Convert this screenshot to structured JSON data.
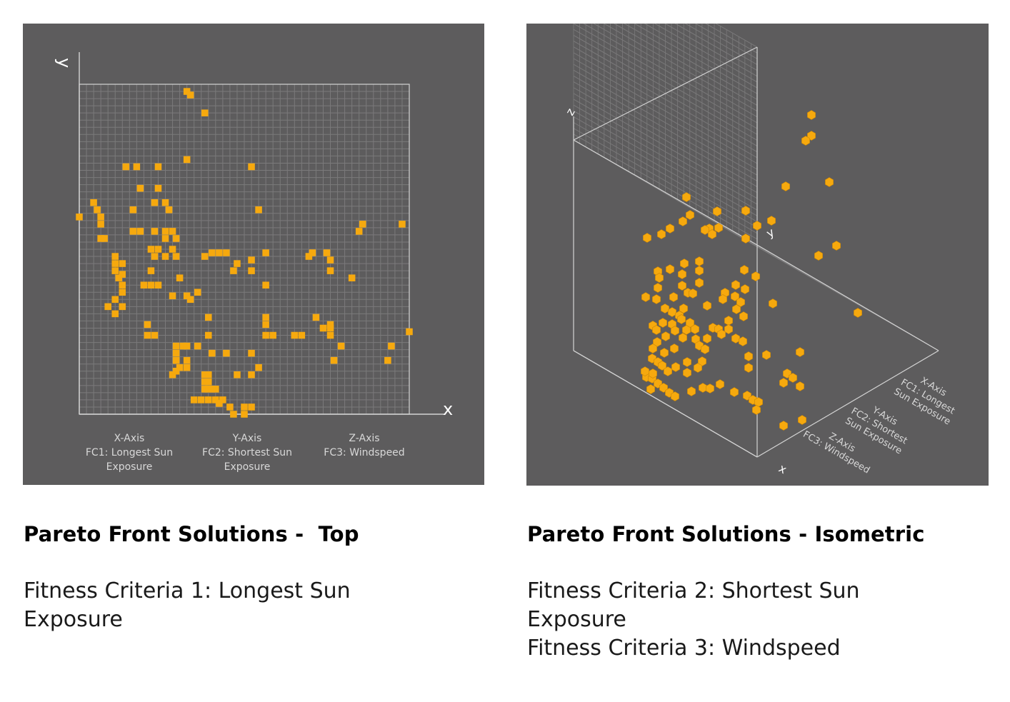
{
  "top_panel": {
    "axis_letters": {
      "x": "x",
      "y": "y"
    },
    "legend": [
      {
        "title": "X-Axis",
        "lines": [
          "FC1: Longest Sun",
          "Exposure"
        ]
      },
      {
        "title": "Y-Axis",
        "lines": [
          "FC2: Shortest Sun",
          "Exposure"
        ]
      },
      {
        "title": "Z-Axis",
        "lines": [
          "FC3: Windspeed"
        ]
      }
    ]
  },
  "iso_panel": {
    "axis_letters": {
      "x": "x",
      "y": "y",
      "z": "z"
    },
    "legend": [
      {
        "title": "X-Axis",
        "lines": [
          "FC1: Longest",
          "Sun Exposure"
        ]
      },
      {
        "title": "Y-Axis",
        "lines": [
          "FC2: Shortest",
          "Sun Exposure"
        ]
      },
      {
        "title": "Z-Axis",
        "lines": [
          "FC3: Windspeed"
        ]
      }
    ]
  },
  "captions": {
    "top": {
      "heading": "Pareto Front Solutions -  Top",
      "lines": [
        "Fitness Criteria 1: Longest Sun",
        "Exposure"
      ]
    },
    "iso": {
      "heading": "Pareto Front Solutions - Isometric",
      "lines": [
        "Fitness Criteria 2: Shortest Sun",
        "Exposure",
        "Fitness Criteria 3: Windspeed"
      ]
    }
  },
  "colors": {
    "panel_bg": "#5d5c5d",
    "grid_minor": "#7b7a7b",
    "grid_major": "#d4d4d4",
    "point": "#f6a90e",
    "point_dark": "#c98608",
    "point_light": "#ffc43a"
  },
  "chart_data": [
    {
      "type": "scatter",
      "title": "Pareto Front Solutions -  Top",
      "view": "top",
      "grid": true,
      "xlim": [
        0,
        46
      ],
      "ylim": [
        0,
        46
      ],
      "points": [
        [
          15,
          45
        ],
        [
          15.5,
          44.5
        ],
        [
          17.5,
          42
        ],
        [
          15,
          35.5
        ],
        [
          6.5,
          34.5
        ],
        [
          8,
          34.5
        ],
        [
          11,
          34.5
        ],
        [
          24,
          34.5
        ],
        [
          8.5,
          31.5
        ],
        [
          11,
          31.5
        ],
        [
          10.5,
          29.5
        ],
        [
          12,
          29.5
        ],
        [
          2,
          29.5
        ],
        [
          2.5,
          28.5
        ],
        [
          7.5,
          28.5
        ],
        [
          12.5,
          28.5
        ],
        [
          25,
          28.5
        ],
        [
          0,
          27.5
        ],
        [
          3,
          27.5
        ],
        [
          3,
          26.5
        ],
        [
          45,
          26.5
        ],
        [
          39.5,
          26.5
        ],
        [
          39,
          25.5
        ],
        [
          7.5,
          25.5
        ],
        [
          8.5,
          25.5
        ],
        [
          10.5,
          25.5
        ],
        [
          12,
          25.5
        ],
        [
          13,
          25.5
        ],
        [
          3,
          24.5
        ],
        [
          3.5,
          24.5
        ],
        [
          12,
          24.5
        ],
        [
          13.5,
          24.5
        ],
        [
          10,
          23
        ],
        [
          11,
          23
        ],
        [
          13,
          23
        ],
        [
          17.5,
          22
        ],
        [
          18.5,
          22.5
        ],
        [
          19.5,
          22.5
        ],
        [
          20.5,
          22.5
        ],
        [
          26,
          22.5
        ],
        [
          32.5,
          22.5
        ],
        [
          34.5,
          22.5
        ],
        [
          13.5,
          22
        ],
        [
          5,
          22
        ],
        [
          10.5,
          22
        ],
        [
          12,
          22
        ],
        [
          32,
          22
        ],
        [
          22,
          21
        ],
        [
          24,
          21.5
        ],
        [
          35,
          21.5
        ],
        [
          5,
          21
        ],
        [
          6,
          21
        ],
        [
          5,
          20
        ],
        [
          24,
          20
        ],
        [
          21.5,
          20
        ],
        [
          35,
          20
        ],
        [
          6,
          19.5
        ],
        [
          10,
          20
        ],
        [
          5.5,
          19
        ],
        [
          14,
          19
        ],
        [
          38,
          19
        ],
        [
          6,
          18
        ],
        [
          9,
          18
        ],
        [
          10,
          18
        ],
        [
          11,
          18
        ],
        [
          26,
          18
        ],
        [
          6,
          17
        ],
        [
          16.5,
          17
        ],
        [
          13,
          16.5
        ],
        [
          15,
          16.5
        ],
        [
          5,
          16
        ],
        [
          15.5,
          16
        ],
        [
          4,
          15
        ],
        [
          6,
          15
        ],
        [
          5,
          14
        ],
        [
          18,
          13.5
        ],
        [
          26,
          13.5
        ],
        [
          33,
          13.5
        ],
        [
          9.5,
          12.5
        ],
        [
          35,
          12.5
        ],
        [
          46,
          11.5
        ],
        [
          26,
          12.5
        ],
        [
          34,
          12
        ],
        [
          35,
          12
        ],
        [
          30,
          11
        ],
        [
          31,
          11
        ],
        [
          9.5,
          11
        ],
        [
          10.5,
          11
        ],
        [
          18,
          11
        ],
        [
          26,
          11
        ],
        [
          27,
          11
        ],
        [
          35,
          11
        ],
        [
          13.5,
          9.5
        ],
        [
          14.5,
          9.5
        ],
        [
          15,
          9.5
        ],
        [
          16.5,
          9.5
        ],
        [
          36.5,
          9.5
        ],
        [
          43.5,
          9.5
        ],
        [
          13.5,
          8.5
        ],
        [
          18.5,
          8.5
        ],
        [
          20.5,
          8.5
        ],
        [
          24,
          8.5
        ],
        [
          13.5,
          7.5
        ],
        [
          15,
          7.5
        ],
        [
          35.5,
          7.5
        ],
        [
          43,
          7.5
        ],
        [
          14,
          6.5
        ],
        [
          15,
          6.5
        ],
        [
          25,
          6.5
        ],
        [
          13.5,
          6
        ],
        [
          13,
          5.5
        ],
        [
          17.5,
          5.5
        ],
        [
          18,
          5.5
        ],
        [
          22,
          5.5
        ],
        [
          24,
          5.5
        ],
        [
          17.5,
          4.5
        ],
        [
          18,
          4.5
        ],
        [
          17.5,
          3.5
        ],
        [
          18,
          3.5
        ],
        [
          18.5,
          3.5
        ],
        [
          19,
          3.5
        ],
        [
          16,
          2
        ],
        [
          17,
          2
        ],
        [
          18,
          2
        ],
        [
          19,
          2
        ],
        [
          20,
          2
        ],
        [
          19.5,
          1.5
        ],
        [
          21,
          1
        ],
        [
          23,
          1
        ],
        [
          24,
          1
        ],
        [
          21.5,
          0
        ],
        [
          23,
          0
        ]
      ]
    },
    {
      "type": "scatter",
      "title": "Pareto Front Solutions - Isometric",
      "view": "isometric",
      "grid": true,
      "points_image": [
        [
          1136,
          161
        ],
        [
          1136,
          190
        ],
        [
          1128,
          197
        ],
        [
          1161,
          255
        ],
        [
          1100,
          261
        ],
        [
          961,
          276
        ],
        [
          1004,
          296
        ],
        [
          1044,
          295
        ],
        [
          966,
          301
        ],
        [
          1080,
          309
        ],
        [
          1060,
          316
        ],
        [
          956,
          310
        ],
        [
          938,
          320
        ],
        [
          926,
          328
        ],
        [
          906,
          333
        ],
        [
          993,
          320
        ],
        [
          1006,
          319
        ],
        [
          987,
          322
        ],
        [
          997,
          328
        ],
        [
          1044,
          334
        ],
        [
          1171,
          344
        ],
        [
          1146,
          358
        ],
        [
          958,
          369
        ],
        [
          979,
          366
        ],
        [
          921,
          380
        ],
        [
          938,
          377
        ],
        [
          955,
          384
        ],
        [
          979,
          379
        ],
        [
          1042,
          378
        ],
        [
          1058,
          387
        ],
        [
          923,
          389
        ],
        [
          979,
          396
        ],
        [
          955,
          400
        ],
        [
          921,
          403
        ],
        [
          1030,
          399
        ],
        [
          1015,
          410
        ],
        [
          963,
          410
        ],
        [
          904,
          416
        ],
        [
          919,
          419
        ],
        [
          943,
          416
        ],
        [
          970,
          411
        ],
        [
          1043,
          405
        ],
        [
          1029,
          415
        ],
        [
          1037,
          423
        ],
        [
          1082,
          425
        ],
        [
          1201,
          438
        ],
        [
          931,
          432
        ],
        [
          941,
          437
        ],
        [
          951,
          442
        ],
        [
          954,
          447
        ],
        [
          957,
          432
        ],
        [
          990,
          428
        ],
        [
          1012,
          419
        ],
        [
          1031,
          433
        ],
        [
          1041,
          443
        ],
        [
          1020,
          449
        ],
        [
          966,
          452
        ],
        [
          961,
          462
        ],
        [
          973,
          461
        ],
        [
          998,
          459
        ],
        [
          1006,
          461
        ],
        [
          1020,
          461
        ],
        [
          1010,
          468
        ],
        [
          1030,
          474
        ],
        [
          1040,
          478
        ],
        [
          914,
          456
        ],
        [
          919,
          462
        ],
        [
          928,
          452
        ],
        [
          941,
          454
        ],
        [
          945,
          463
        ],
        [
          932,
          471
        ],
        [
          956,
          473
        ],
        [
          920,
          479
        ],
        [
          914,
          488
        ],
        [
          930,
          494
        ],
        [
          944,
          488
        ],
        [
          974,
          475
        ],
        [
          990,
          474
        ],
        [
          979,
          484
        ],
        [
          987,
          489
        ],
        [
          1048,
          499
        ],
        [
          1073,
          497
        ],
        [
          1120,
          493
        ],
        [
          913,
          502
        ],
        [
          921,
          507
        ],
        [
          927,
          512
        ],
        [
          935,
          520
        ],
        [
          946,
          514
        ],
        [
          962,
          507
        ],
        [
          983,
          506
        ],
        [
          977,
          515
        ],
        [
          1048,
          515
        ],
        [
          1102,
          523
        ],
        [
          1110,
          529
        ],
        [
          1120,
          541
        ],
        [
          1097,
          536
        ],
        [
          905,
          528
        ],
        [
          913,
          530
        ],
        [
          921,
          537
        ],
        [
          929,
          543
        ],
        [
          937,
          550
        ],
        [
          945,
          555
        ],
        [
          914,
          523
        ],
        [
          903,
          520
        ],
        [
          911,
          545
        ],
        [
          962,
          522
        ],
        [
          968,
          548
        ],
        [
          984,
          543
        ],
        [
          994,
          544
        ],
        [
          1008,
          538
        ],
        [
          1028,
          549
        ],
        [
          1046,
          554
        ],
        [
          1054,
          560
        ],
        [
          1062,
          563
        ],
        [
          1059,
          574
        ],
        [
          1097,
          596
        ],
        [
          1123,
          588
        ]
      ]
    }
  ]
}
